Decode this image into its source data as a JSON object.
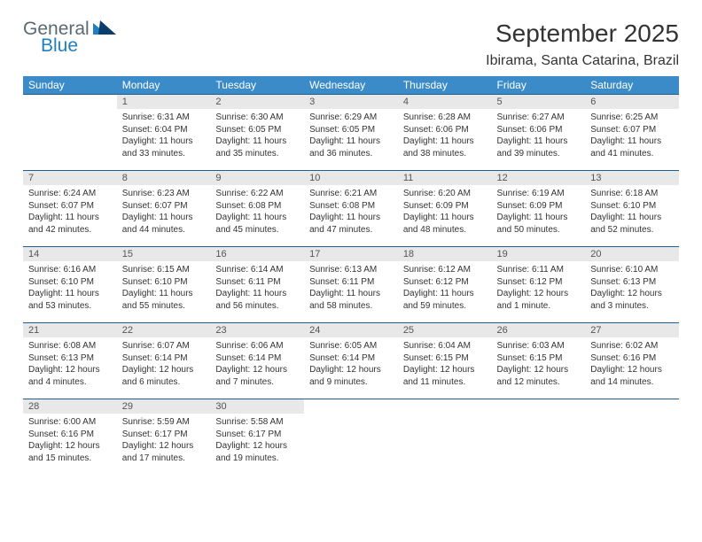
{
  "logo": {
    "general": "General",
    "blue": "Blue"
  },
  "title": "September 2025",
  "location": "Ibirama, Santa Catarina, Brazil",
  "colors": {
    "header_bg": "#3b8bc8",
    "header_text": "#ffffff",
    "daynum_bg": "#e8e8e8",
    "rule": "#1f5f8f",
    "logo_gray": "#5a6a72",
    "logo_blue": "#1f7fbf"
  },
  "day_names": [
    "Sunday",
    "Monday",
    "Tuesday",
    "Wednesday",
    "Thursday",
    "Friday",
    "Saturday"
  ],
  "weeks": [
    [
      null,
      {
        "n": "1",
        "sr": "Sunrise: 6:31 AM",
        "ss": "Sunset: 6:04 PM",
        "dl": "Daylight: 11 hours and 33 minutes."
      },
      {
        "n": "2",
        "sr": "Sunrise: 6:30 AM",
        "ss": "Sunset: 6:05 PM",
        "dl": "Daylight: 11 hours and 35 minutes."
      },
      {
        "n": "3",
        "sr": "Sunrise: 6:29 AM",
        "ss": "Sunset: 6:05 PM",
        "dl": "Daylight: 11 hours and 36 minutes."
      },
      {
        "n": "4",
        "sr": "Sunrise: 6:28 AM",
        "ss": "Sunset: 6:06 PM",
        "dl": "Daylight: 11 hours and 38 minutes."
      },
      {
        "n": "5",
        "sr": "Sunrise: 6:27 AM",
        "ss": "Sunset: 6:06 PM",
        "dl": "Daylight: 11 hours and 39 minutes."
      },
      {
        "n": "6",
        "sr": "Sunrise: 6:25 AM",
        "ss": "Sunset: 6:07 PM",
        "dl": "Daylight: 11 hours and 41 minutes."
      }
    ],
    [
      {
        "n": "7",
        "sr": "Sunrise: 6:24 AM",
        "ss": "Sunset: 6:07 PM",
        "dl": "Daylight: 11 hours and 42 minutes."
      },
      {
        "n": "8",
        "sr": "Sunrise: 6:23 AM",
        "ss": "Sunset: 6:07 PM",
        "dl": "Daylight: 11 hours and 44 minutes."
      },
      {
        "n": "9",
        "sr": "Sunrise: 6:22 AM",
        "ss": "Sunset: 6:08 PM",
        "dl": "Daylight: 11 hours and 45 minutes."
      },
      {
        "n": "10",
        "sr": "Sunrise: 6:21 AM",
        "ss": "Sunset: 6:08 PM",
        "dl": "Daylight: 11 hours and 47 minutes."
      },
      {
        "n": "11",
        "sr": "Sunrise: 6:20 AM",
        "ss": "Sunset: 6:09 PM",
        "dl": "Daylight: 11 hours and 48 minutes."
      },
      {
        "n": "12",
        "sr": "Sunrise: 6:19 AM",
        "ss": "Sunset: 6:09 PM",
        "dl": "Daylight: 11 hours and 50 minutes."
      },
      {
        "n": "13",
        "sr": "Sunrise: 6:18 AM",
        "ss": "Sunset: 6:10 PM",
        "dl": "Daylight: 11 hours and 52 minutes."
      }
    ],
    [
      {
        "n": "14",
        "sr": "Sunrise: 6:16 AM",
        "ss": "Sunset: 6:10 PM",
        "dl": "Daylight: 11 hours and 53 minutes."
      },
      {
        "n": "15",
        "sr": "Sunrise: 6:15 AM",
        "ss": "Sunset: 6:10 PM",
        "dl": "Daylight: 11 hours and 55 minutes."
      },
      {
        "n": "16",
        "sr": "Sunrise: 6:14 AM",
        "ss": "Sunset: 6:11 PM",
        "dl": "Daylight: 11 hours and 56 minutes."
      },
      {
        "n": "17",
        "sr": "Sunrise: 6:13 AM",
        "ss": "Sunset: 6:11 PM",
        "dl": "Daylight: 11 hours and 58 minutes."
      },
      {
        "n": "18",
        "sr": "Sunrise: 6:12 AM",
        "ss": "Sunset: 6:12 PM",
        "dl": "Daylight: 11 hours and 59 minutes."
      },
      {
        "n": "19",
        "sr": "Sunrise: 6:11 AM",
        "ss": "Sunset: 6:12 PM",
        "dl": "Daylight: 12 hours and 1 minute."
      },
      {
        "n": "20",
        "sr": "Sunrise: 6:10 AM",
        "ss": "Sunset: 6:13 PM",
        "dl": "Daylight: 12 hours and 3 minutes."
      }
    ],
    [
      {
        "n": "21",
        "sr": "Sunrise: 6:08 AM",
        "ss": "Sunset: 6:13 PM",
        "dl": "Daylight: 12 hours and 4 minutes."
      },
      {
        "n": "22",
        "sr": "Sunrise: 6:07 AM",
        "ss": "Sunset: 6:14 PM",
        "dl": "Daylight: 12 hours and 6 minutes."
      },
      {
        "n": "23",
        "sr": "Sunrise: 6:06 AM",
        "ss": "Sunset: 6:14 PM",
        "dl": "Daylight: 12 hours and 7 minutes."
      },
      {
        "n": "24",
        "sr": "Sunrise: 6:05 AM",
        "ss": "Sunset: 6:14 PM",
        "dl": "Daylight: 12 hours and 9 minutes."
      },
      {
        "n": "25",
        "sr": "Sunrise: 6:04 AM",
        "ss": "Sunset: 6:15 PM",
        "dl": "Daylight: 12 hours and 11 minutes."
      },
      {
        "n": "26",
        "sr": "Sunrise: 6:03 AM",
        "ss": "Sunset: 6:15 PM",
        "dl": "Daylight: 12 hours and 12 minutes."
      },
      {
        "n": "27",
        "sr": "Sunrise: 6:02 AM",
        "ss": "Sunset: 6:16 PM",
        "dl": "Daylight: 12 hours and 14 minutes."
      }
    ],
    [
      {
        "n": "28",
        "sr": "Sunrise: 6:00 AM",
        "ss": "Sunset: 6:16 PM",
        "dl": "Daylight: 12 hours and 15 minutes."
      },
      {
        "n": "29",
        "sr": "Sunrise: 5:59 AM",
        "ss": "Sunset: 6:17 PM",
        "dl": "Daylight: 12 hours and 17 minutes."
      },
      {
        "n": "30",
        "sr": "Sunrise: 5:58 AM",
        "ss": "Sunset: 6:17 PM",
        "dl": "Daylight: 12 hours and 19 minutes."
      },
      null,
      null,
      null,
      null
    ]
  ]
}
